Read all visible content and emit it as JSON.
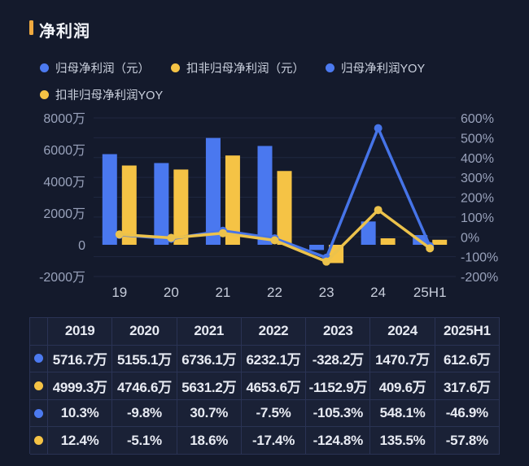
{
  "page": {
    "background": "#141a2c"
  },
  "header": {
    "title": "净利润",
    "marker_color": "#efa93f"
  },
  "legend": {
    "items": [
      {
        "key": "net-profit",
        "label": "归母净利润（元）",
        "color": "#4c7af0"
      },
      {
        "key": "deducted-net-profit",
        "label": "扣非归母净利润（元）",
        "color": "#f5c345"
      },
      {
        "key": "net-profit-yoy",
        "label": "归母净利润YOY",
        "color": "#4c7af0"
      },
      {
        "key": "deducted-net-profit-yoy",
        "label": "扣非归母净利润YOY",
        "color": "#f5c345"
      }
    ]
  },
  "chart_data": {
    "type": "combo-bar-line",
    "categories": [
      "19",
      "20",
      "21",
      "22",
      "23",
      "24",
      "25H1"
    ],
    "series": [
      {
        "key": "net-profit",
        "name": "归母净利润（元）",
        "type": "bar",
        "axis": "left",
        "color": "#4a78ef",
        "unit": "万",
        "values": [
          5716.7,
          5155.1,
          6736.1,
          6232.1,
          -328.2,
          1470.7,
          612.6
        ]
      },
      {
        "key": "deducted-net-profit",
        "name": "扣非归母净利润（元）",
        "type": "bar",
        "axis": "left",
        "color": "#f5c345",
        "unit": "万",
        "values": [
          4999.3,
          4746.6,
          5631.2,
          4653.6,
          -1152.9,
          409.6,
          317.6
        ]
      },
      {
        "key": "net-profit-yoy",
        "name": "归母净利润YOY",
        "type": "line",
        "axis": "right",
        "color": "#4674e8",
        "unit": "%",
        "values": [
          10.3,
          -9.8,
          30.7,
          -7.5,
          -105.3,
          548.1,
          -46.9
        ]
      },
      {
        "key": "deducted-net-profit-yoy",
        "name": "扣非归母净利润YOY",
        "type": "line",
        "axis": "right",
        "color": "#ecc24b",
        "unit": "%",
        "values": [
          12.4,
          -5.1,
          18.6,
          -17.4,
          -124.8,
          135.5,
          -57.8
        ]
      }
    ],
    "left_axis": {
      "min": -2000,
      "max": 8000,
      "tick_values": [
        8000,
        6000,
        4000,
        2000,
        0,
        -2000
      ],
      "tick_labels": [
        "8000万",
        "6000万",
        "4000万",
        "2000万",
        "0",
        "-2000万"
      ]
    },
    "right_axis": {
      "min": -200,
      "max": 600,
      "tick_values": [
        600,
        500,
        400,
        300,
        200,
        100,
        0,
        -100,
        -200
      ],
      "tick_labels": [
        "600%",
        "500%",
        "400%",
        "300%",
        "200%",
        "100%",
        "0%",
        "-100%",
        "-200%"
      ]
    },
    "grid": true,
    "legend_position": "top",
    "title": "净利润"
  },
  "table": {
    "columns": [
      "2019",
      "2020",
      "2021",
      "2022",
      "2023",
      "2024",
      "2025H1"
    ],
    "rows": [
      {
        "key": "net-profit",
        "dot_color": "#4c7af0",
        "cells": [
          "5716.7万",
          "5155.1万",
          "6736.1万",
          "6232.1万",
          "-328.2万",
          "1470.7万",
          "612.6万"
        ]
      },
      {
        "key": "deducted-net-profit",
        "dot_color": "#f5c345",
        "cells": [
          "4999.3万",
          "4746.6万",
          "5631.2万",
          "4653.6万",
          "-1152.9万",
          "409.6万",
          "317.6万"
        ]
      },
      {
        "key": "net-profit-yoy",
        "dot_color": "#4c7af0",
        "cells": [
          "10.3%",
          "-9.8%",
          "30.7%",
          "-7.5%",
          "-105.3%",
          "548.1%",
          "-46.9%"
        ]
      },
      {
        "key": "deducted-net-profit-yoy",
        "dot_color": "#f5c345",
        "cells": [
          "12.4%",
          "-5.1%",
          "18.6%",
          "-17.4%",
          "-124.8%",
          "135.5%",
          "-57.8%"
        ]
      }
    ]
  },
  "chart_colors": {
    "grid_line": "#1f2740",
    "left_axis_text": "#99a2bb",
    "right_axis_text": "#99a2bb",
    "x_axis_text": "#c7cddb"
  }
}
